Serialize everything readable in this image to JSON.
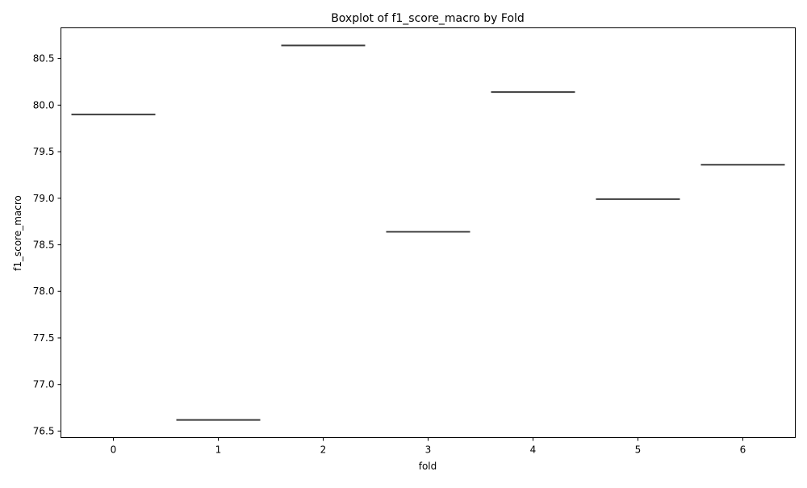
{
  "chart_data": {
    "type": "boxplot",
    "title": "Boxplot of f1_score_macro by Fold",
    "xlabel": "fold",
    "ylabel": "f1_score_macro",
    "categories": [
      "0",
      "1",
      "2",
      "3",
      "4",
      "5",
      "6"
    ],
    "values": [
      79.9,
      76.62,
      80.64,
      78.64,
      80.14,
      78.99,
      79.36
    ],
    "ylim": [
      76.43,
      80.83
    ],
    "yticks": [
      76.5,
      77.0,
      77.5,
      78.0,
      78.5,
      79.0,
      79.5,
      80.0,
      80.5
    ],
    "ytick_labels": [
      "76.5",
      "77.0",
      "77.5",
      "78.0",
      "78.5",
      "79.0",
      "79.5",
      "80.0",
      "80.5"
    ],
    "grid": false,
    "box_color": "#3d3d3d"
  }
}
